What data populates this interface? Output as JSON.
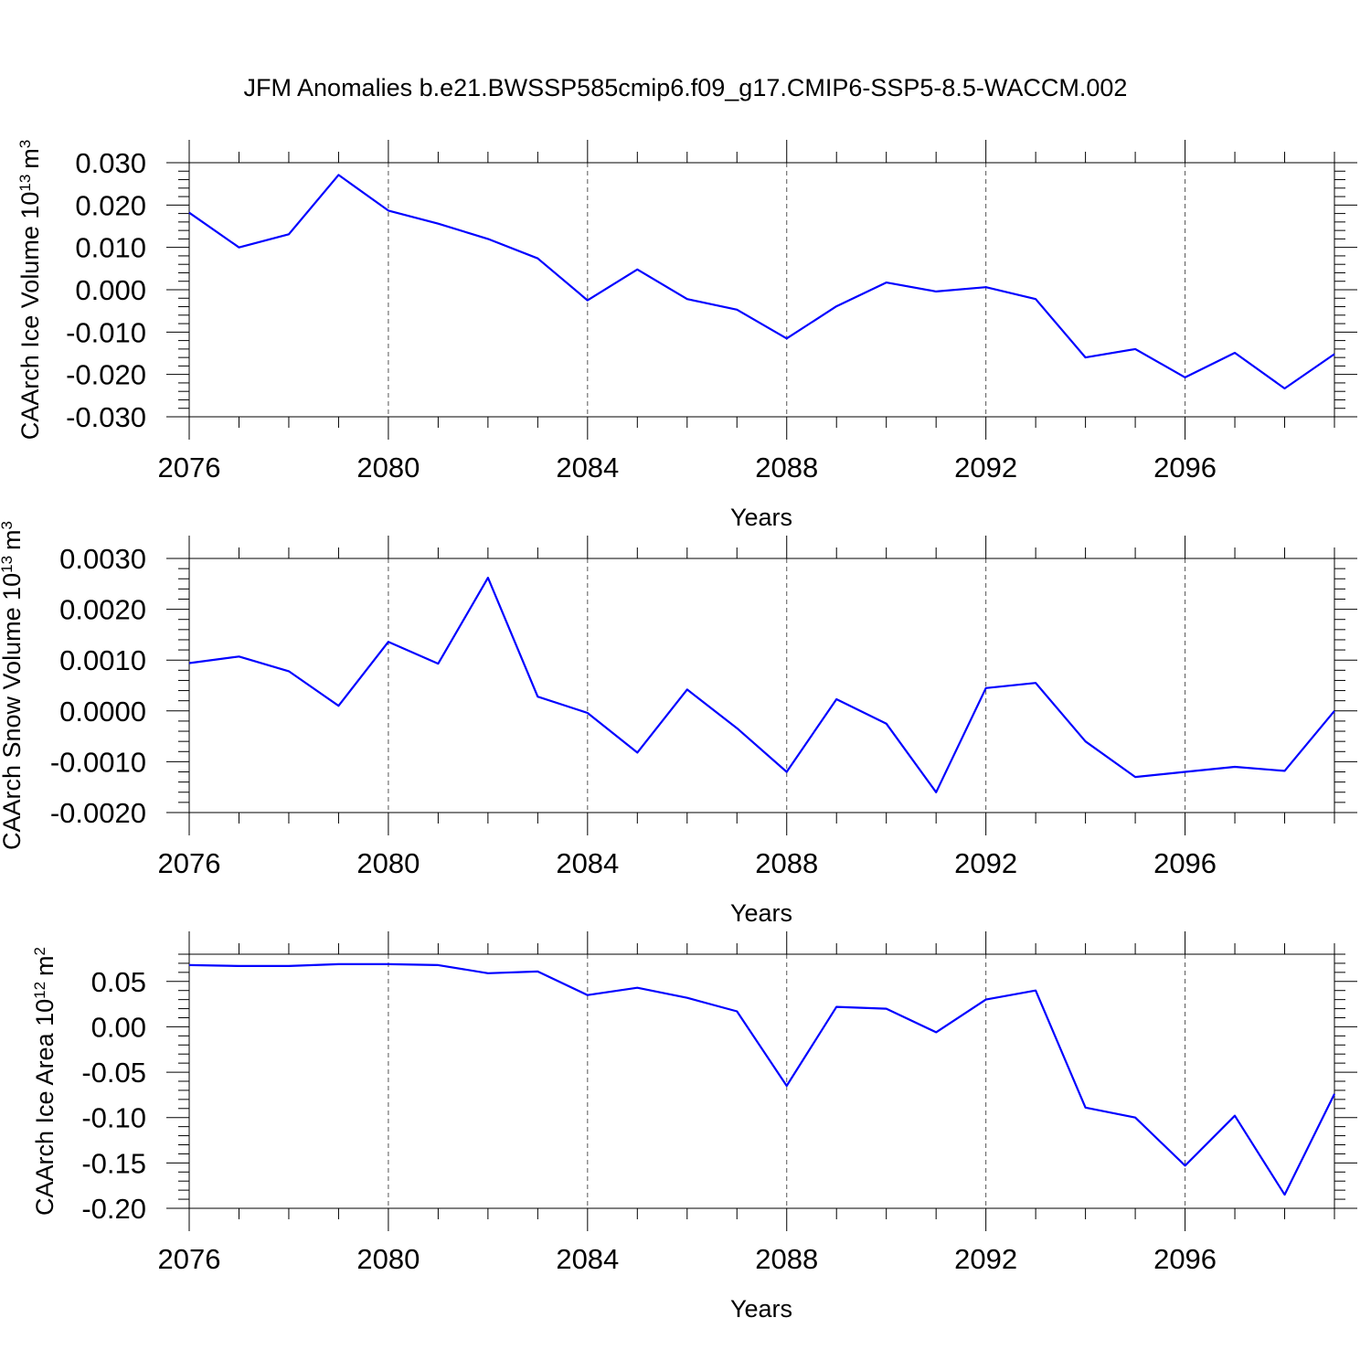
{
  "title": "JFM Anomalies b.e21.BWSSP585cmip6.f09_g17.CMIP6-SSP5-8.5-WACCM.002",
  "chart_data": [
    {
      "type": "line",
      "ylabel": "CAArch Ice Volume 10",
      "ylabel_sup": "13",
      "ylabel_unit": "m",
      "ylabel_unit_sup": "3",
      "xlabel": "Years",
      "xlim": [
        2076,
        2099
      ],
      "ylim": [
        -0.03,
        0.03
      ],
      "xticks": [
        "2076",
        "2080",
        "2084",
        "2088",
        "2092",
        "2096"
      ],
      "yticks": [
        "-0.030",
        "-0.020",
        "-0.010",
        "0.000",
        "0.010",
        "0.020",
        "0.030"
      ],
      "series": [
        {
          "name": "CAArch Ice Volume",
          "color": "#0000ff",
          "x": [
            2076,
            2077,
            2078,
            2079,
            2080,
            2081,
            2082,
            2083,
            2084,
            2085,
            2086,
            2087,
            2088,
            2089,
            2090,
            2091,
            2092,
            2093,
            2094,
            2095,
            2096,
            2097,
            2098,
            2099
          ],
          "values": [
            0.0182,
            0.01,
            0.0131,
            0.0271,
            0.0187,
            0.0156,
            0.012,
            0.0074,
            -0.0025,
            0.0048,
            -0.0022,
            -0.0047,
            -0.0115,
            -0.0039,
            0.0017,
            -0.0004,
            0.0006,
            -0.0022,
            -0.016,
            -0.014,
            -0.0207,
            -0.0149,
            -0.0233,
            -0.0152
          ]
        }
      ]
    },
    {
      "type": "line",
      "ylabel": "CAArch Snow Volume 10",
      "ylabel_sup": "13",
      "ylabel_unit": "m",
      "ylabel_unit_sup": "3",
      "xlabel": "Years",
      "xlim": [
        2076,
        2099
      ],
      "ylim": [
        -0.002,
        0.003
      ],
      "xticks": [
        "2076",
        "2080",
        "2084",
        "2088",
        "2092",
        "2096"
      ],
      "yticks": [
        "-0.0020",
        "-0.0010",
        "0.0000",
        "0.0010",
        "0.0020",
        "0.0030"
      ],
      "series": [
        {
          "name": "CAArch Snow Volume",
          "color": "#0000ff",
          "x": [
            2076,
            2077,
            2078,
            2079,
            2080,
            2081,
            2082,
            2083,
            2084,
            2085,
            2086,
            2087,
            2088,
            2089,
            2090,
            2091,
            2092,
            2093,
            2094,
            2095,
            2096,
            2097,
            2098,
            2099
          ],
          "values": [
            0.00094,
            0.00107,
            0.00078,
            0.0001,
            0.00136,
            0.00093,
            0.00262,
            0.00028,
            -4e-05,
            -0.00082,
            0.00042,
            -0.00034,
            -0.0012,
            0.00023,
            -0.00025,
            -0.0016,
            0.00045,
            0.00055,
            -0.0006,
            -0.0013,
            -0.0012,
            -0.0011,
            -0.00118,
            0.0
          ]
        }
      ]
    },
    {
      "type": "line",
      "ylabel": "CAArch Ice Area 10",
      "ylabel_sup": "12",
      "ylabel_unit": "m",
      "ylabel_unit_sup": "2",
      "xlabel": "Years",
      "xlim": [
        2076,
        2099
      ],
      "ylim": [
        -0.2,
        0.08
      ],
      "xticks": [
        "2076",
        "2080",
        "2084",
        "2088",
        "2092",
        "2096"
      ],
      "yticks": [
        "-0.20",
        "-0.15",
        "-0.10",
        "-0.05",
        "0.00",
        "0.05"
      ],
      "series": [
        {
          "name": "CAArch Ice Area",
          "color": "#0000ff",
          "x": [
            2076,
            2077,
            2078,
            2079,
            2080,
            2081,
            2082,
            2083,
            2084,
            2085,
            2086,
            2087,
            2088,
            2089,
            2090,
            2091,
            2092,
            2093,
            2094,
            2095,
            2096,
            2097,
            2098,
            2099
          ],
          "values": [
            0.068,
            0.067,
            0.067,
            0.069,
            0.069,
            0.068,
            0.059,
            0.061,
            0.035,
            0.043,
            0.032,
            0.017,
            -0.065,
            0.022,
            0.02,
            -0.006,
            0.03,
            0.04,
            -0.089,
            -0.1,
            -0.153,
            -0.098,
            -0.185,
            -0.074
          ]
        }
      ]
    }
  ]
}
